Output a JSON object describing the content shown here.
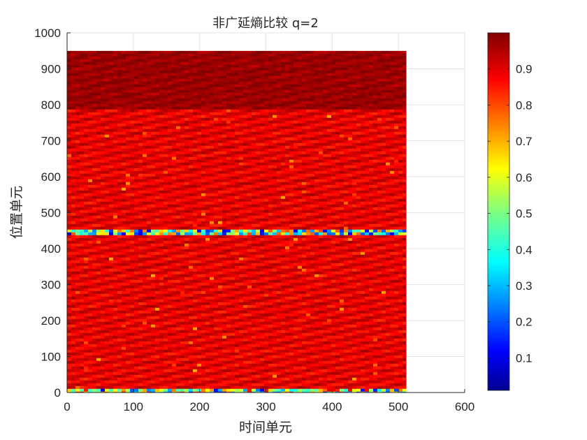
{
  "chart_data": {
    "type": "heatmap",
    "title": "非广延熵比较 q=2",
    "xlabel": "时间单元",
    "ylabel": "位置单元",
    "xlim": [
      0,
      600
    ],
    "ylim": [
      0,
      1000
    ],
    "x_ticks": [
      "0",
      "100",
      "200",
      "300",
      "400",
      "500",
      "600"
    ],
    "y_ticks": [
      "0",
      "100",
      "200",
      "300",
      "400",
      "500",
      "600",
      "700",
      "800",
      "900",
      "1000"
    ],
    "grid": true,
    "colormap": "jet",
    "colorbar": {
      "range": [
        0.01,
        1.0
      ],
      "ticks": [
        "0.1",
        "0.2",
        "0.3",
        "0.4",
        "0.5",
        "0.6",
        "0.7",
        "0.8",
        "0.9"
      ],
      "tick_values": [
        0.1,
        0.2,
        0.3,
        0.4,
        0.5,
        0.6,
        0.7,
        0.8,
        0.9
      ]
    },
    "data_extent": {
      "x": [
        0,
        512
      ],
      "y": [
        0,
        950
      ]
    },
    "regions": [
      {
        "y": [
          0,
          15
        ],
        "value_min": 0.1,
        "value_max": 0.9,
        "note": "low-entropy band near bottom edge"
      },
      {
        "y": [
          15,
          790
        ],
        "value_min": 0.85,
        "value_max": 0.95,
        "note": "diagonal striped region"
      },
      {
        "y": [
          445,
          455
        ],
        "value_min": 0.1,
        "value_max": 0.8,
        "note": "low-entropy horizontal band"
      },
      {
        "y": [
          790,
          950
        ],
        "value_min": 0.95,
        "value_max": 1.0,
        "note": "saturated top region"
      }
    ]
  }
}
